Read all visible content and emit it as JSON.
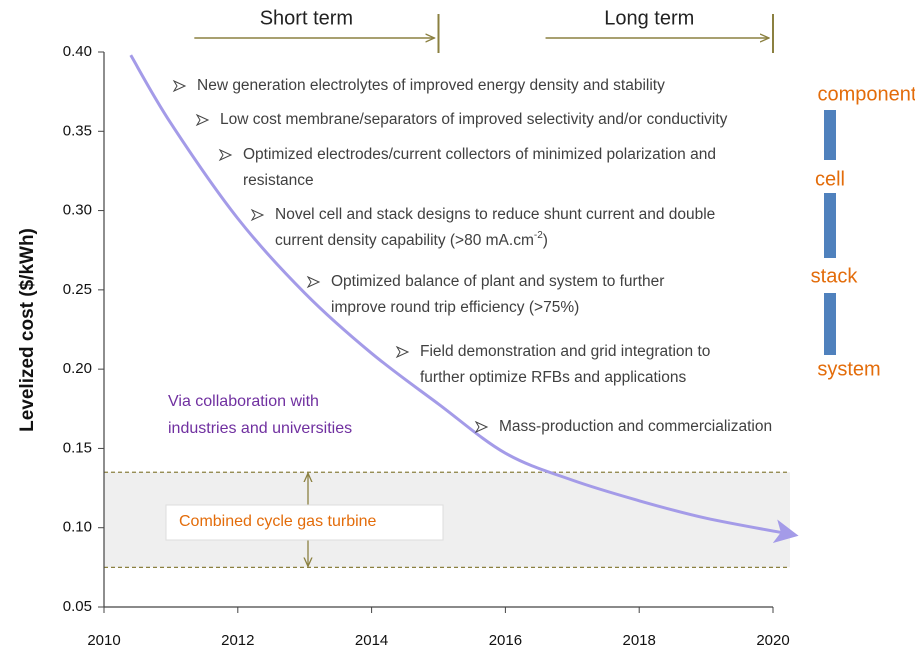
{
  "chart_data": {
    "type": "line",
    "ylabel": "Levelized cost ($/kWh)",
    "x": [
      2010.4,
      2011,
      2012,
      2013,
      2014,
      2015,
      2016,
      2017,
      2018,
      2019,
      2020.25
    ],
    "series": [
      {
        "color": "#a49be8",
        "values": [
          0.398,
          0.355,
          0.295,
          0.248,
          0.21,
          0.178,
          0.147,
          0.13,
          0.117,
          0.106,
          0.096
        ]
      }
    ],
    "xlim": [
      2010,
      2020
    ],
    "xticks": [
      2010,
      2012,
      2014,
      2016,
      2018,
      2020
    ],
    "ylim": [
      0.05,
      0.4
    ],
    "yticks": [
      0.05,
      {
        "value": 0.1,
        "label": "0.10"
      },
      0.15,
      {
        "value": 0.2,
        "label": "0.20"
      },
      0.25,
      {
        "value": 0.3,
        "label": "0.30"
      },
      0.35,
      {
        "value": 0.4,
        "label": "0.40"
      }
    ],
    "phases": [
      {
        "label": "Short term",
        "start": 2011.35,
        "end": 2015
      },
      {
        "label": "Long term",
        "start": 2016.6,
        "end": 2020
      }
    ],
    "band": {
      "label": "Combined cycle gas turbine",
      "range": [
        0.075,
        0.135
      ],
      "color": "#efefef"
    },
    "notes": [
      {
        "lines": [
          "New generation electrolytes of improved energy density and stability"
        ]
      },
      {
        "lines": [
          "Low cost membrane/separators of improved selectivity and/or conductivity"
        ]
      },
      {
        "lines": [
          "Optimized electrodes/current collectors of minimized polarization and",
          "resistance"
        ]
      },
      {
        "lines": [
          "Novel cell and stack designs to reduce shunt current and double",
          "current density capability (>80 mA.cm"
        ],
        "superscript": "-2",
        "tail": ")"
      },
      {
        "lines": [
          "Optimized balance of plant and system to further",
          "improve round trip efficiency (>75%)"
        ]
      },
      {
        "lines": [
          "Field demonstration and grid integration to",
          "further optimize RFBs and applications"
        ]
      },
      {
        "lines": [
          "Mass-production and commercialization"
        ]
      }
    ],
    "callout": [
      "Via collaboration with",
      "industries and universities"
    ],
    "levels": [
      "component",
      "cell",
      "stack",
      "system"
    ]
  }
}
